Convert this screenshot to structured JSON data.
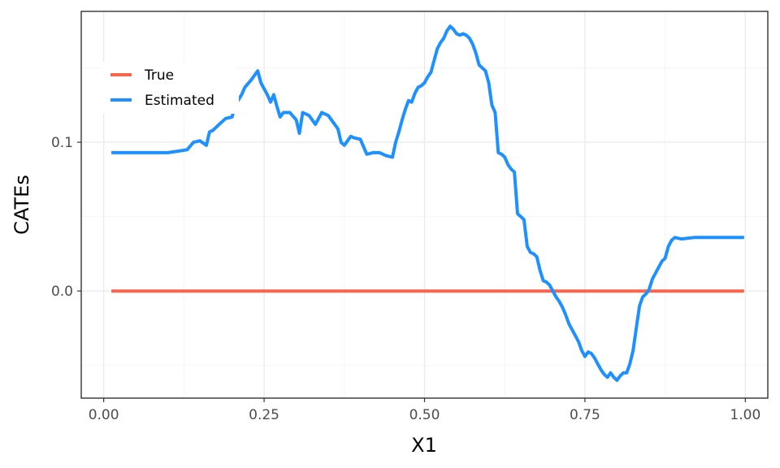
{
  "chart_data": {
    "type": "line",
    "xlabel": "X1",
    "ylabel": "CATEs",
    "xlim": [
      -0.035,
      1.035
    ],
    "ylim": [
      -0.072,
      0.188
    ],
    "x_ticks": [
      {
        "value": 0.0,
        "label": "0.00"
      },
      {
        "value": 0.25,
        "label": "0.25"
      },
      {
        "value": 0.5,
        "label": "0.50"
      },
      {
        "value": 0.75,
        "label": "0.75"
      },
      {
        "value": 1.0,
        "label": "1.00"
      }
    ],
    "y_ticks": [
      {
        "value": 0.0,
        "label": "0.0"
      },
      {
        "value": 0.1,
        "label": "0.1"
      }
    ],
    "x_minor_ticks": [
      0.125,
      0.375,
      0.625,
      0.875
    ],
    "y_minor_ticks": [
      -0.05,
      0.05,
      0.15
    ],
    "grid": true,
    "legend_position": "top-left",
    "series": [
      {
        "name": "True",
        "color": "#F8654E",
        "points": [
          [
            0.012,
            0.0
          ],
          [
            0.998,
            0.0
          ]
        ]
      },
      {
        "name": "Estimated",
        "color": "#1E90FF",
        "points": [
          [
            0.012,
            0.093
          ],
          [
            0.05,
            0.093
          ],
          [
            0.1,
            0.093
          ],
          [
            0.115,
            0.094
          ],
          [
            0.13,
            0.095
          ],
          [
            0.14,
            0.1
          ],
          [
            0.15,
            0.101
          ],
          [
            0.16,
            0.098
          ],
          [
            0.165,
            0.107
          ],
          [
            0.17,
            0.108
          ],
          [
            0.18,
            0.112
          ],
          [
            0.19,
            0.116
          ],
          [
            0.2,
            0.117
          ],
          [
            0.205,
            0.125
          ],
          [
            0.215,
            0.132
          ],
          [
            0.22,
            0.137
          ],
          [
            0.23,
            0.142
          ],
          [
            0.24,
            0.148
          ],
          [
            0.245,
            0.14
          ],
          [
            0.255,
            0.132
          ],
          [
            0.26,
            0.127
          ],
          [
            0.265,
            0.132
          ],
          [
            0.27,
            0.124
          ],
          [
            0.275,
            0.117
          ],
          [
            0.28,
            0.12
          ],
          [
            0.29,
            0.12
          ],
          [
            0.3,
            0.115
          ],
          [
            0.305,
            0.106
          ],
          [
            0.31,
            0.12
          ],
          [
            0.32,
            0.118
          ],
          [
            0.33,
            0.112
          ],
          [
            0.34,
            0.12
          ],
          [
            0.35,
            0.118
          ],
          [
            0.36,
            0.112
          ],
          [
            0.365,
            0.109
          ],
          [
            0.37,
            0.1
          ],
          [
            0.375,
            0.098
          ],
          [
            0.385,
            0.104
          ],
          [
            0.39,
            0.103
          ],
          [
            0.4,
            0.102
          ],
          [
            0.41,
            0.092
          ],
          [
            0.42,
            0.093
          ],
          [
            0.43,
            0.093
          ],
          [
            0.44,
            0.091
          ],
          [
            0.45,
            0.09
          ],
          [
            0.455,
            0.1
          ],
          [
            0.46,
            0.107
          ],
          [
            0.465,
            0.115
          ],
          [
            0.47,
            0.122
          ],
          [
            0.475,
            0.128
          ],
          [
            0.48,
            0.127
          ],
          [
            0.485,
            0.133
          ],
          [
            0.49,
            0.137
          ],
          [
            0.495,
            0.138
          ],
          [
            0.5,
            0.14
          ],
          [
            0.505,
            0.144
          ],
          [
            0.51,
            0.147
          ],
          [
            0.515,
            0.155
          ],
          [
            0.52,
            0.163
          ],
          [
            0.525,
            0.167
          ],
          [
            0.53,
            0.17
          ],
          [
            0.535,
            0.175
          ],
          [
            0.54,
            0.178
          ],
          [
            0.545,
            0.176
          ],
          [
            0.55,
            0.173
          ],
          [
            0.555,
            0.172
          ],
          [
            0.56,
            0.173
          ],
          [
            0.565,
            0.172
          ],
          [
            0.57,
            0.17
          ],
          [
            0.575,
            0.166
          ],
          [
            0.58,
            0.16
          ],
          [
            0.585,
            0.152
          ],
          [
            0.59,
            0.15
          ],
          [
            0.595,
            0.148
          ],
          [
            0.6,
            0.14
          ],
          [
            0.605,
            0.125
          ],
          [
            0.61,
            0.12
          ],
          [
            0.615,
            0.093
          ],
          [
            0.62,
            0.092
          ],
          [
            0.625,
            0.09
          ],
          [
            0.63,
            0.085
          ],
          [
            0.635,
            0.082
          ],
          [
            0.64,
            0.08
          ],
          [
            0.645,
            0.052
          ],
          [
            0.65,
            0.05
          ],
          [
            0.655,
            0.048
          ],
          [
            0.66,
            0.03
          ],
          [
            0.665,
            0.026
          ],
          [
            0.67,
            0.025
          ],
          [
            0.675,
            0.023
          ],
          [
            0.68,
            0.014
          ],
          [
            0.685,
            0.007
          ],
          [
            0.69,
            0.006
          ],
          [
            0.695,
            0.004
          ],
          [
            0.7,
            0.0
          ],
          [
            0.705,
            -0.004
          ],
          [
            0.71,
            -0.007
          ],
          [
            0.715,
            -0.011
          ],
          [
            0.72,
            -0.016
          ],
          [
            0.725,
            -0.022
          ],
          [
            0.73,
            -0.026
          ],
          [
            0.735,
            -0.03
          ],
          [
            0.74,
            -0.034
          ],
          [
            0.745,
            -0.04
          ],
          [
            0.75,
            -0.044
          ],
          [
            0.755,
            -0.041
          ],
          [
            0.76,
            -0.042
          ],
          [
            0.765,
            -0.045
          ],
          [
            0.77,
            -0.049
          ],
          [
            0.775,
            -0.053
          ],
          [
            0.78,
            -0.056
          ],
          [
            0.785,
            -0.058
          ],
          [
            0.79,
            -0.055
          ],
          [
            0.795,
            -0.058
          ],
          [
            0.8,
            -0.06
          ],
          [
            0.805,
            -0.057
          ],
          [
            0.81,
            -0.055
          ],
          [
            0.815,
            -0.055
          ],
          [
            0.82,
            -0.049
          ],
          [
            0.825,
            -0.04
          ],
          [
            0.83,
            -0.025
          ],
          [
            0.835,
            -0.01
          ],
          [
            0.84,
            -0.004
          ],
          [
            0.845,
            -0.002
          ],
          [
            0.85,
            0.001
          ],
          [
            0.855,
            0.008
          ],
          [
            0.86,
            0.012
          ],
          [
            0.865,
            0.016
          ],
          [
            0.87,
            0.02
          ],
          [
            0.875,
            0.022
          ],
          [
            0.88,
            0.03
          ],
          [
            0.885,
            0.034
          ],
          [
            0.89,
            0.036
          ],
          [
            0.9,
            0.035
          ],
          [
            0.92,
            0.036
          ],
          [
            0.95,
            0.036
          ],
          [
            0.998,
            0.036
          ]
        ]
      }
    ]
  }
}
